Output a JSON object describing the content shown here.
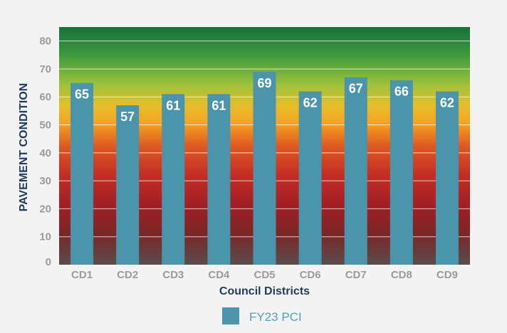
{
  "chart_data": {
    "type": "bar",
    "title": "",
    "xlabel": "Council Districts",
    "ylabel": "PAVEMENT CONDITION",
    "categories": [
      "CD1",
      "CD2",
      "CD3",
      "CD4",
      "CD5",
      "CD6",
      "CD7",
      "CD8",
      "CD9"
    ],
    "series": [
      {
        "name": "FY23 PCI",
        "values": [
          65,
          57,
          61,
          61,
          69,
          62,
          67,
          66,
          62
        ],
        "color": "#4a95ab"
      }
    ],
    "ylim": [
      0,
      85
    ],
    "yticks": [
      0,
      10,
      20,
      30,
      40,
      50,
      60,
      70,
      80
    ],
    "grid": true,
    "data_labels": true,
    "legend": "bottom-center",
    "background_gradient": [
      "#1b7a3c",
      "#7ab83c",
      "#f0b626",
      "#d84a21",
      "#b81f27",
      "#7e1f1f",
      "#5b4f4f"
    ]
  },
  "colors": {
    "bar": "#4a95ab",
    "axis_title": "#1f3a5c",
    "tick_label": "#9a9a9a",
    "legend_text": "#4aa3bb",
    "page_background": "#f3f3f3"
  }
}
